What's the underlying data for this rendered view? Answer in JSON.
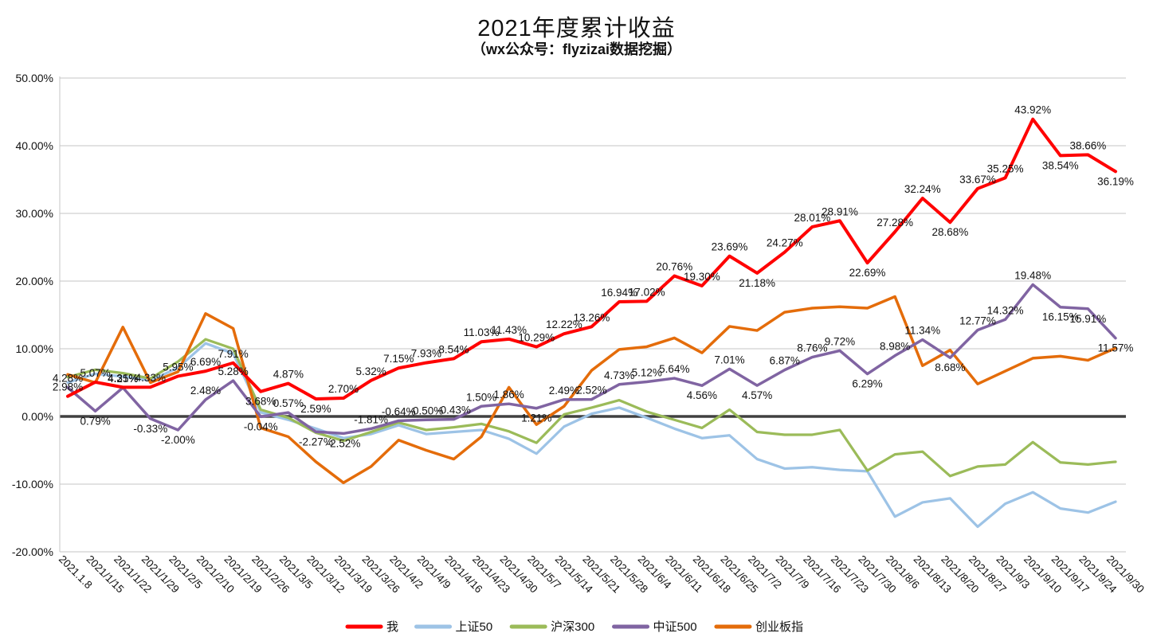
{
  "title": "2021年度累计收益",
  "subtitle": "（wx公众号：flyzizai数据挖掘）",
  "chart_data": {
    "type": "line",
    "title": "2021年度累计收益",
    "subtitle": "（wx公众号：flyzizai数据挖掘）",
    "grid": true,
    "legend_position": "bottom",
    "y_axis": {
      "min": -20,
      "max": 50,
      "step": 10,
      "tick_labels": [
        "50.00%",
        "40.00%",
        "30.00%",
        "20.00%",
        "10.00%",
        "0.00%",
        "-10.00%",
        "-20.00%"
      ],
      "zero_line": true
    },
    "x_labels": [
      "2021.1.8",
      "2021/1/15",
      "2021/1/22",
      "2021/1/29",
      "2021/2/5",
      "2021/2/10",
      "2021/2/19",
      "2021/2/26",
      "2021/3/5",
      "2021/3/12",
      "2021/3/19",
      "2021/3/26",
      "2021/4/2",
      "2021/4/9",
      "2021/4/16",
      "2021/4/23",
      "2021/4/30",
      "2021/5/7",
      "2021/5/14",
      "2021/5/21",
      "2021/5/28",
      "2021/6/4",
      "2021/6/11",
      "2021/6/18",
      "2021/6/25",
      "2021/7/2",
      "2021/7/9",
      "2021/7/16",
      "2021/7/23",
      "2021/7/30",
      "2021/8/6",
      "2021/8/13",
      "2021/8/20",
      "2021/8/27",
      "2021/9/3",
      "2021/9/10",
      "2021/9/17",
      "2021/9/24",
      "2021/9/30"
    ],
    "series": [
      {
        "name": "我",
        "color": "#FF0000",
        "line_width": 4,
        "data_labels": true,
        "values": [
          2.98,
          5.07,
          4.31,
          4.33,
          5.95,
          6.69,
          7.91,
          3.68,
          4.87,
          2.59,
          2.7,
          5.32,
          7.15,
          7.93,
          8.54,
          11.03,
          11.43,
          10.29,
          12.22,
          13.26,
          16.94,
          17.02,
          20.76,
          19.3,
          23.69,
          21.18,
          24.27,
          28.01,
          28.91,
          22.69,
          27.28,
          32.24,
          28.68,
          33.67,
          35.25,
          43.92,
          38.54,
          38.66,
          36.19
        ]
      },
      {
        "name": "上证50",
        "color": "#9DC3E6",
        "line_width": 3.25,
        "data_labels": false,
        "values": [
          5.0,
          6.3,
          5.9,
          5.3,
          7.2,
          10.8,
          9.3,
          0.6,
          -0.5,
          -1.8,
          -3.2,
          -2.6,
          -1.3,
          -2.6,
          -2.3,
          -2.0,
          -3.3,
          -5.5,
          -1.5,
          0.4,
          1.3,
          -0.2,
          -1.8,
          -3.2,
          -2.8,
          -6.3,
          -7.7,
          -7.5,
          -7.9,
          -8.1,
          -14.8,
          -12.7,
          -12.1,
          -16.3,
          -12.9,
          -11.2,
          -13.6,
          -14.2,
          -12.6
        ]
      },
      {
        "name": "沪深300",
        "color": "#9BBB59",
        "line_width": 3.25,
        "data_labels": false,
        "values": [
          5.8,
          6.9,
          6.4,
          5.6,
          8.1,
          11.4,
          10.0,
          1.0,
          -0.2,
          -2.4,
          -3.6,
          -2.3,
          -0.9,
          -2.0,
          -1.6,
          -1.1,
          -2.2,
          -3.9,
          0.3,
          1.3,
          2.4,
          0.7,
          -0.5,
          -1.7,
          1.0,
          -2.3,
          -2.7,
          -2.7,
          -2.0,
          -8.0,
          -5.6,
          -5.2,
          -8.8,
          -7.4,
          -7.1,
          -3.8,
          -6.8,
          -7.1,
          -6.7
        ]
      },
      {
        "name": "中证500",
        "color": "#8064A2",
        "line_width": 3.5,
        "data_labels": true,
        "values": [
          4.28,
          0.79,
          4.25,
          -0.33,
          -2.0,
          2.48,
          5.28,
          -0.04,
          0.57,
          -2.27,
          -2.52,
          -1.81,
          -0.64,
          -0.5,
          -0.43,
          1.5,
          1.86,
          1.21,
          2.49,
          2.52,
          4.73,
          5.12,
          5.64,
          4.56,
          7.01,
          4.57,
          6.87,
          8.76,
          9.72,
          6.29,
          8.98,
          11.34,
          8.68,
          12.77,
          14.32,
          19.48,
          16.15,
          15.91,
          11.57
        ]
      },
      {
        "name": "创业板指",
        "color": "#E46C0A",
        "line_width": 3.5,
        "data_labels": false,
        "values": [
          6.2,
          5.0,
          13.2,
          5.0,
          6.6,
          15.2,
          13.0,
          -1.7,
          -3.0,
          -6.7,
          -9.8,
          -7.4,
          -3.5,
          -5.0,
          -6.3,
          -3.0,
          4.3,
          -1.2,
          1.5,
          6.8,
          9.9,
          10.3,
          11.6,
          9.4,
          13.3,
          12.7,
          15.4,
          16.0,
          16.2,
          16.0,
          17.7,
          7.5,
          9.8,
          4.8,
          6.7,
          8.6,
          8.9,
          8.3,
          10.1
        ]
      }
    ],
    "label_format": "0.00%"
  }
}
